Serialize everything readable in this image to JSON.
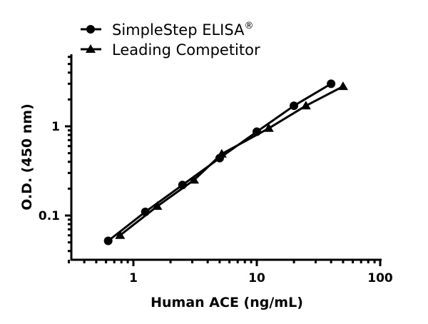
{
  "chart_data": {
    "type": "line",
    "title": "",
    "xlabel": "Human ACE (ng/mL)",
    "ylabel": "O.D. (450 nm)",
    "xscale": "log",
    "yscale": "log",
    "xlim": [
      0.3,
      100
    ],
    "ylim": [
      0.03,
      4
    ],
    "x_ticks": [
      1,
      10,
      100
    ],
    "x_tick_labels": [
      "1",
      "10",
      "100"
    ],
    "y_ticks": [
      0.1,
      1
    ],
    "y_tick_labels": [
      "0.1",
      "1"
    ],
    "grid": false,
    "legend_position": "top-left",
    "series": [
      {
        "name": "SimpleStep ELISA®",
        "marker": "circle",
        "color": "#000000",
        "x": [
          0.625,
          1.25,
          2.5,
          5,
          10,
          20,
          40
        ],
        "values": [
          0.052,
          0.11,
          0.22,
          0.44,
          0.87,
          1.7,
          3.0
        ]
      },
      {
        "name": "Leading Competitor",
        "marker": "triangle",
        "color": "#000000",
        "x": [
          0.78,
          1.56,
          3.1,
          5.2,
          12.5,
          25,
          50
        ],
        "values": [
          0.06,
          0.127,
          0.25,
          0.49,
          0.95,
          1.7,
          2.8
        ]
      }
    ]
  },
  "legend": {
    "items": [
      {
        "label": "SimpleStep ELISA",
        "superscript": "®",
        "marker": "circle"
      },
      {
        "label": "Leading Competitor",
        "superscript": "",
        "marker": "triangle"
      }
    ]
  },
  "axes": {
    "x_title": "Human ACE (ng/mL)",
    "y_title": "O.D. (450 nm)",
    "x_tick_labels": [
      "1",
      "10",
      "100"
    ],
    "y_tick_labels": [
      "0.1",
      "1"
    ]
  }
}
